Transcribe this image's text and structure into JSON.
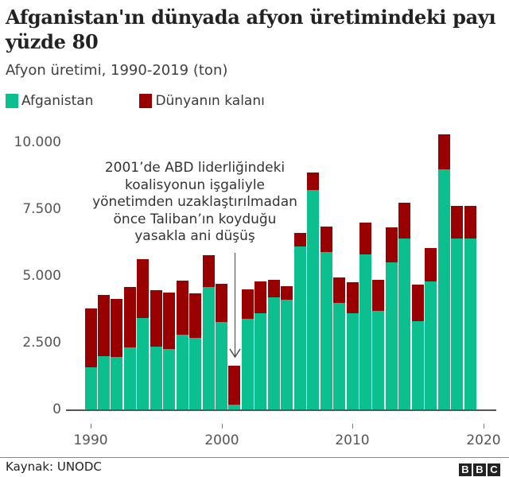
{
  "header": {
    "title": "Afganistan'ın dünyada afyon üretimindeki payı yüzde 80",
    "subtitle": "Afyon üretimi, 1990-2019 (ton)"
  },
  "legend": [
    {
      "label": "Afganistan",
      "color": "#0bbf8f"
    },
    {
      "label": "Dünyanın kalanı",
      "color": "#990000"
    }
  ],
  "axes": {
    "y_ticks": [
      "10.000",
      "7.500",
      "5.000",
      "2.500",
      "0"
    ],
    "x_ticks": [
      "1990",
      "2000",
      "2010",
      "2020"
    ]
  },
  "annotation": {
    "text_lines": [
      "2001’de ABD liderliğindeki",
      "koalisyonun işgaliyle",
      "yönetimden uzaklaştırılmadan",
      "önce Taliban’ın koyduğu",
      "yasakla ani düşüş"
    ]
  },
  "footer": {
    "source": "Kaynak: UNODC",
    "logo": [
      "B",
      "B",
      "C"
    ]
  },
  "chart_data": {
    "type": "bar",
    "stacked": true,
    "title": "Afganistan'ın dünyada afyon üretimindeki payı yüzde 80",
    "subtitle": "Afyon üretimi, 1990-2019 (ton)",
    "xlabel": "",
    "ylabel": "",
    "ylim": [
      0,
      10000
    ],
    "y_ticks": [
      0,
      2500,
      5000,
      7500,
      10000
    ],
    "x_ticks": [
      1990,
      2000,
      2010,
      2020
    ],
    "legend_position": "top-left",
    "grid": false,
    "categories": [
      1990,
      1991,
      1992,
      1993,
      1994,
      1995,
      1996,
      1997,
      1998,
      1999,
      2000,
      2001,
      2002,
      2003,
      2004,
      2005,
      2006,
      2007,
      2008,
      2009,
      2010,
      2011,
      2012,
      2013,
      2014,
      2015,
      2016,
      2017,
      2018,
      2019
    ],
    "series": [
      {
        "name": "Afganistan",
        "color": "#0bbf8f",
        "values": [
          1570,
          1980,
          1970,
          2330,
          3420,
          2340,
          2250,
          2800,
          2690,
          4570,
          3280,
          180,
          3400,
          3600,
          4200,
          4100,
          6100,
          8200,
          5900,
          4000,
          3600,
          5800,
          3700,
          5500,
          6400,
          3300,
          4800,
          9000,
          6400,
          6400
        ]
      },
      {
        "name": "Dünyanın kalanı",
        "color": "#990000",
        "values": [
          2220,
          2310,
          2170,
          2260,
          2200,
          2110,
          2120,
          2020,
          1660,
          1190,
          1410,
          1450,
          1090,
          1180,
          650,
          520,
          510,
          670,
          940,
          950,
          1150,
          1180,
          1140,
          1310,
          1340,
          1360,
          1250,
          1300,
          1220,
          1210
        ]
      }
    ],
    "annotation": {
      "x": 2001,
      "text": "2001’de ABD liderliğindeki koalisyonun işgaliyle yönetimden uzaklaştırılmadan önce Taliban’ın koyduğu yasakla ani düşüş"
    },
    "source": "Kaynak: UNODC"
  }
}
